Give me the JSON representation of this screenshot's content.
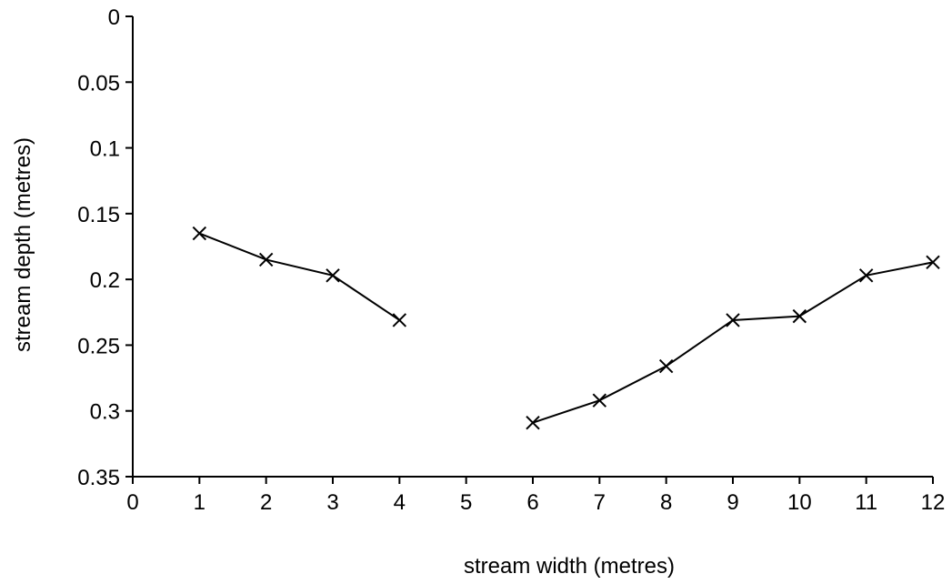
{
  "chart_data": {
    "type": "line",
    "title": "",
    "xlabel": "stream width (metres)",
    "ylabel": "stream depth (metres)",
    "xlim": [
      0,
      12
    ],
    "ylim": [
      0,
      0.35
    ],
    "y_inverted": true,
    "x_ticks": [
      "0",
      "1",
      "2",
      "3",
      "4",
      "5",
      "6",
      "7",
      "8",
      "9",
      "10",
      "11",
      "12"
    ],
    "y_ticks": [
      "0",
      "0.05",
      "0.1",
      "0.15",
      "0.2",
      "0.25",
      "0.3",
      "0.35"
    ],
    "grid": false,
    "marker": "cross",
    "series": [
      {
        "segments": [
          {
            "x": [
              1,
              2,
              3,
              4
            ],
            "y": [
              0.165,
              0.185,
              0.197,
              0.231
            ]
          },
          {
            "x": [
              6,
              7,
              8,
              9,
              10,
              11,
              12
            ],
            "y": [
              0.309,
              0.292,
              0.266,
              0.231,
              0.228,
              0.197,
              0.187
            ]
          }
        ]
      }
    ]
  }
}
